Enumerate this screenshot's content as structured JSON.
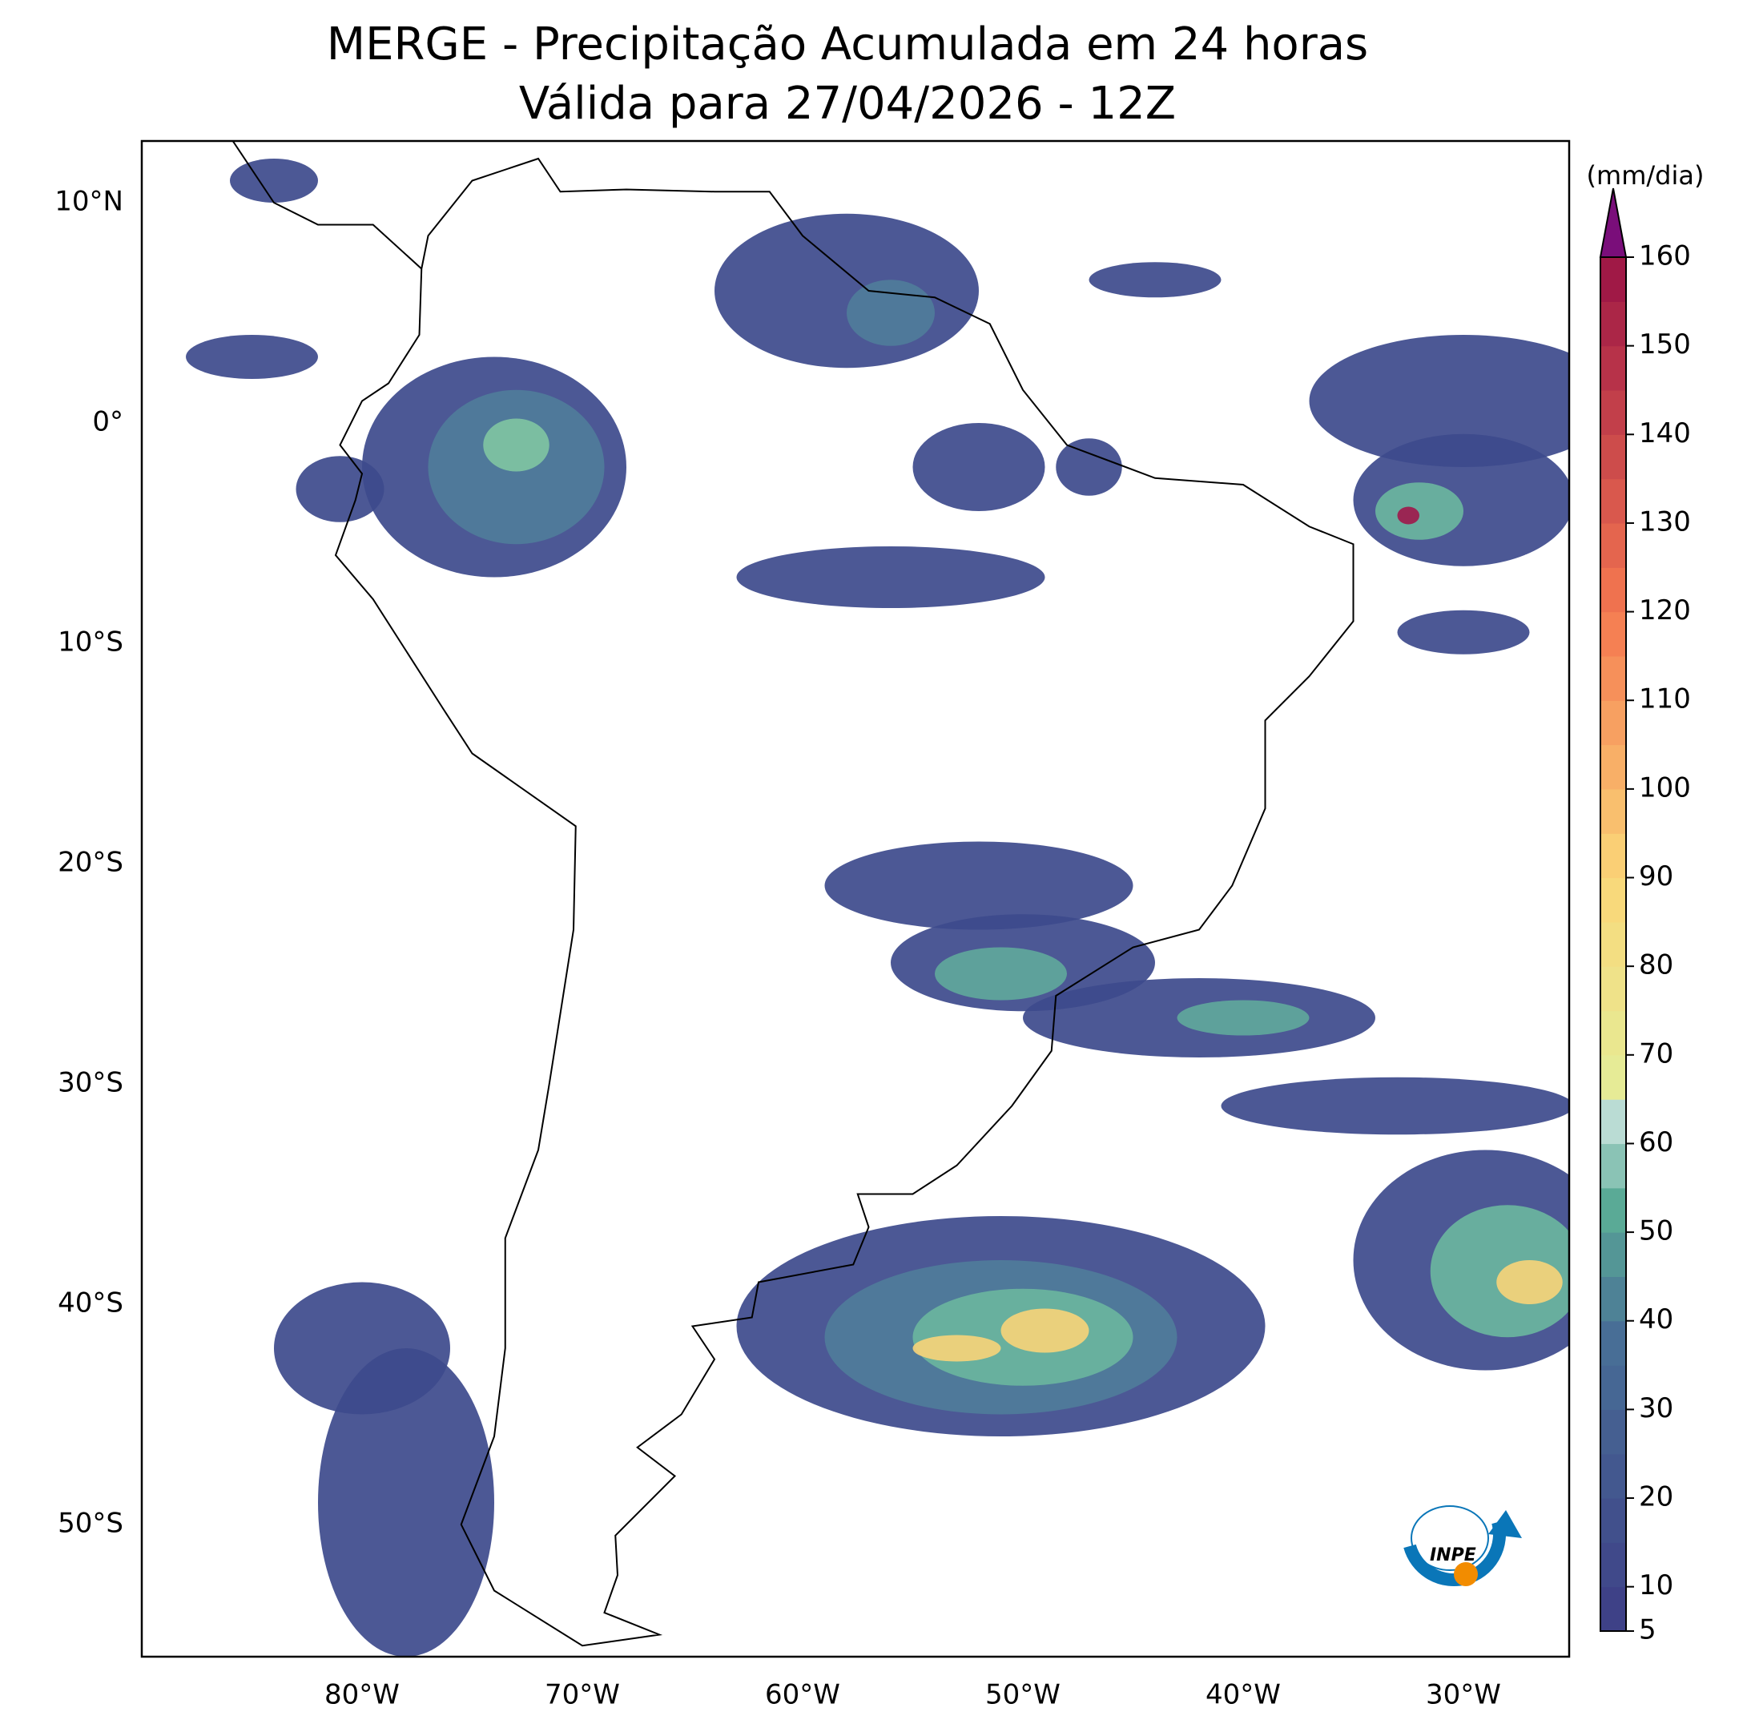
{
  "title": [
    "MERGE - Precipitação Acumulada em 24 horas",
    "Válida para 27/04/2026 - 12Z"
  ],
  "lat_labels": [
    "10°N",
    "0°",
    "10°S",
    "20°S",
    "30°S",
    "40°S",
    "50°S"
  ],
  "lon_labels": [
    "80°W",
    "70°W",
    "60°W",
    "50°W",
    "40°W",
    "30°W"
  ],
  "colorbar": {
    "unit": "(mm/dia)",
    "ticks": [
      5,
      10,
      20,
      30,
      40,
      50,
      60,
      70,
      80,
      90,
      100,
      110,
      120,
      130,
      140,
      150,
      160
    ]
  },
  "logo": "INPE"
}
